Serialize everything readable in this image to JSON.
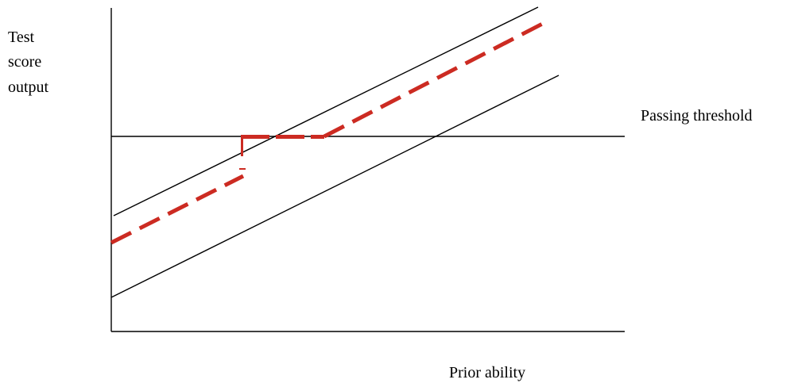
{
  "y_axis_label": [
    "Test",
    "score",
    "output"
  ],
  "x_axis_label": "Prior ability",
  "threshold_label": "Passing threshold",
  "colors": {
    "axis": "#000000",
    "lines": "#000000",
    "dashed_path": "#cc2b22"
  }
}
